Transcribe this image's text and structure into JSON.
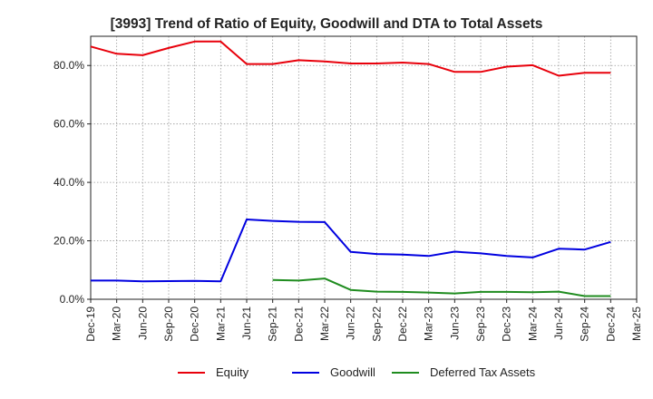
{
  "chart_data": {
    "type": "line",
    "title": "[3993]  Trend of Ratio of Equity, Goodwill and DTA to Total Assets",
    "xlabel": "",
    "ylabel": "",
    "ylim": [
      0,
      90
    ],
    "grid": true,
    "legend_position": "bottom",
    "y_ticks": [
      0,
      20,
      40,
      60,
      80
    ],
    "y_tick_labels": [
      "0.0%",
      "20.0%",
      "40.0%",
      "60.0%",
      "80.0%"
    ],
    "x_tick_labels": [
      "Dec-19",
      "Mar-20",
      "Jun-20",
      "Sep-20",
      "Dec-20",
      "Mar-21",
      "Jun-21",
      "Sep-21",
      "Dec-21",
      "Mar-22",
      "Jun-22",
      "Sep-22",
      "Dec-22",
      "Mar-23",
      "Jun-23",
      "Sep-23",
      "Dec-23",
      "Mar-24",
      "Jun-24",
      "Sep-24",
      "Dec-24",
      "Mar-25"
    ],
    "x": [
      "Dec-19",
      "Mar-20",
      "Jun-20",
      "Sep-20",
      "Dec-20",
      "Mar-21",
      "Jun-21",
      "Sep-21",
      "Dec-21",
      "Mar-22",
      "Jun-22",
      "Sep-22",
      "Dec-22",
      "Mar-23",
      "Jun-23",
      "Sep-23",
      "Dec-23",
      "Mar-24",
      "Jun-24",
      "Sep-24",
      "Dec-24"
    ],
    "series": [
      {
        "name": "Equity",
        "color": "#e8000b",
        "values": [
          86.5,
          84.0,
          83.5,
          86.0,
          88.2,
          88.2,
          80.5,
          80.5,
          81.8,
          81.4,
          80.7,
          80.7,
          81.0,
          80.5,
          77.8,
          77.8,
          79.6,
          80.1,
          76.5,
          77.5,
          77.5
        ]
      },
      {
        "name": "Goodwill",
        "color": "#0000e0",
        "values": [
          6.4,
          6.4,
          6.1,
          6.2,
          6.3,
          6.1,
          27.3,
          26.8,
          26.5,
          26.4,
          16.2,
          15.5,
          15.3,
          14.8,
          16.3,
          15.7,
          14.8,
          14.3,
          17.3,
          17.0,
          19.6
        ]
      },
      {
        "name": "Deferred Tax Assets",
        "color": "#1f8c1f",
        "values": [
          null,
          null,
          null,
          null,
          null,
          null,
          null,
          6.6,
          6.4,
          7.1,
          3.2,
          2.6,
          2.5,
          2.3,
          2.0,
          2.5,
          2.5,
          2.4,
          2.6,
          1.1,
          1.1
        ]
      }
    ]
  }
}
